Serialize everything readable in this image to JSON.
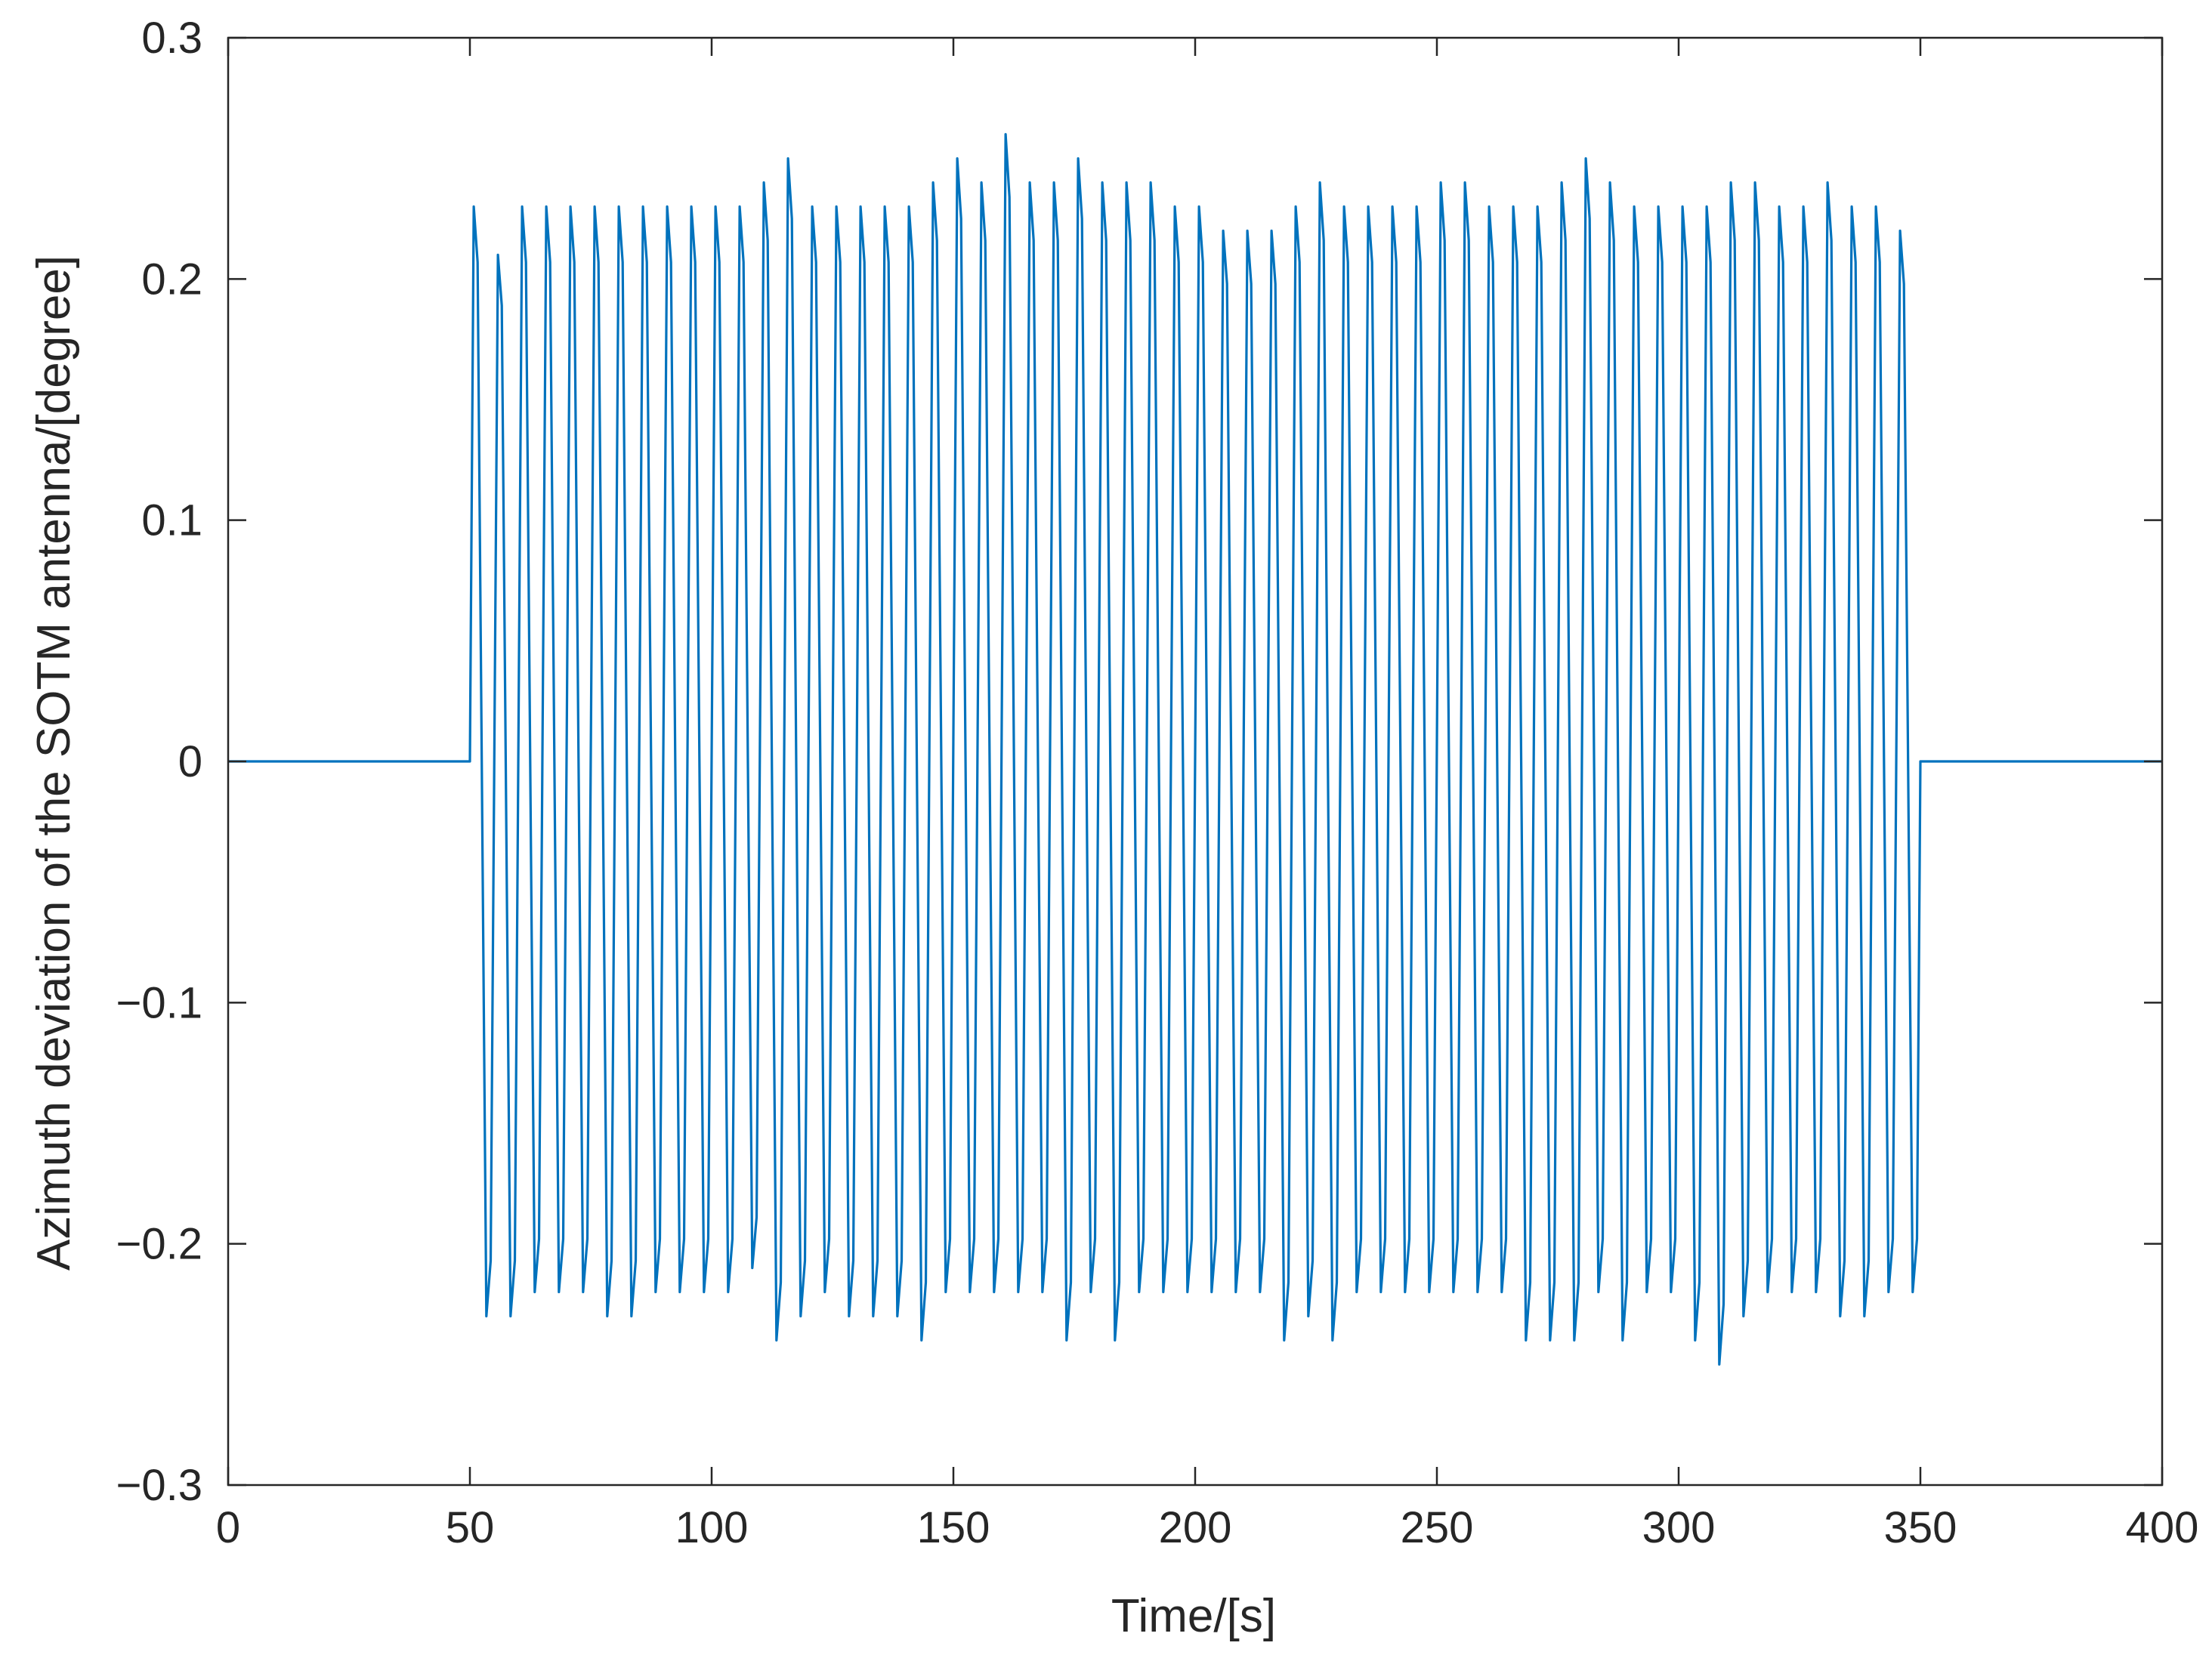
{
  "chart_data": {
    "type": "line",
    "title": "",
    "xlabel": "Time/[s]",
    "ylabel": "Azimuth deviation of the SOTM antenna/[degree]",
    "xlim": [
      0,
      400
    ],
    "ylim": [
      -0.3,
      0.3
    ],
    "xticks": [
      0,
      50,
      100,
      150,
      200,
      250,
      300,
      350,
      400
    ],
    "yticks": [
      -0.3,
      -0.2,
      -0.1,
      0,
      0.1,
      0.2,
      0.3
    ],
    "xtick_labels": [
      "0",
      "50",
      "100",
      "150",
      "200",
      "250",
      "300",
      "350",
      "400"
    ],
    "ytick_labels": [
      "−0.3",
      "−0.2",
      "−0.1",
      "0",
      "0.1",
      "0.2",
      "0.3"
    ],
    "grid": false,
    "series": [
      {
        "color": "#0072BD",
        "signal": {
          "zero_before_s": 50,
          "oscillation_start_s": 50,
          "oscillation_end_s": 350,
          "zero_after_s": 350,
          "period_s": 5,
          "typical_peak": 0.23,
          "typical_trough": -0.22,
          "max_peak": 0.26,
          "max_peak_time_s": 176.5,
          "min_trough": -0.25,
          "min_trough_time_s": 313.5
        },
        "peaks": [
          0.23,
          0.21,
          0.23,
          0.23,
          0.23,
          0.23,
          0.23,
          0.23,
          0.23,
          0.23,
          0.23,
          0.23,
          0.24,
          0.25,
          0.23,
          0.23,
          0.23,
          0.23,
          0.23,
          0.24,
          0.25,
          0.24,
          0.26,
          0.24,
          0.24,
          0.25,
          0.24,
          0.24,
          0.24,
          0.23,
          0.23,
          0.22,
          0.22,
          0.22,
          0.23,
          0.24,
          0.23,
          0.23,
          0.23,
          0.23,
          0.24,
          0.24,
          0.23,
          0.23,
          0.23,
          0.24,
          0.25,
          0.24,
          0.23,
          0.23,
          0.23,
          0.23,
          0.24,
          0.24,
          0.23,
          0.23,
          0.24,
          0.23,
          0.23,
          0.22
        ],
        "troughs": [
          -0.23,
          -0.23,
          -0.22,
          -0.22,
          -0.22,
          -0.23,
          -0.23,
          -0.22,
          -0.22,
          -0.22,
          -0.22,
          -0.21,
          -0.24,
          -0.23,
          -0.22,
          -0.23,
          -0.23,
          -0.23,
          -0.24,
          -0.22,
          -0.22,
          -0.22,
          -0.22,
          -0.22,
          -0.24,
          -0.22,
          -0.24,
          -0.22,
          -0.22,
          -0.22,
          -0.22,
          -0.22,
          -0.22,
          -0.24,
          -0.23,
          -0.24,
          -0.22,
          -0.22,
          -0.22,
          -0.22,
          -0.22,
          -0.22,
          -0.22,
          -0.24,
          -0.24,
          -0.24,
          -0.22,
          -0.24,
          -0.22,
          -0.22,
          -0.24,
          -0.25,
          -0.23,
          -0.22,
          -0.22,
          -0.22,
          -0.23,
          -0.23,
          -0.22,
          -0.22
        ]
      }
    ]
  }
}
